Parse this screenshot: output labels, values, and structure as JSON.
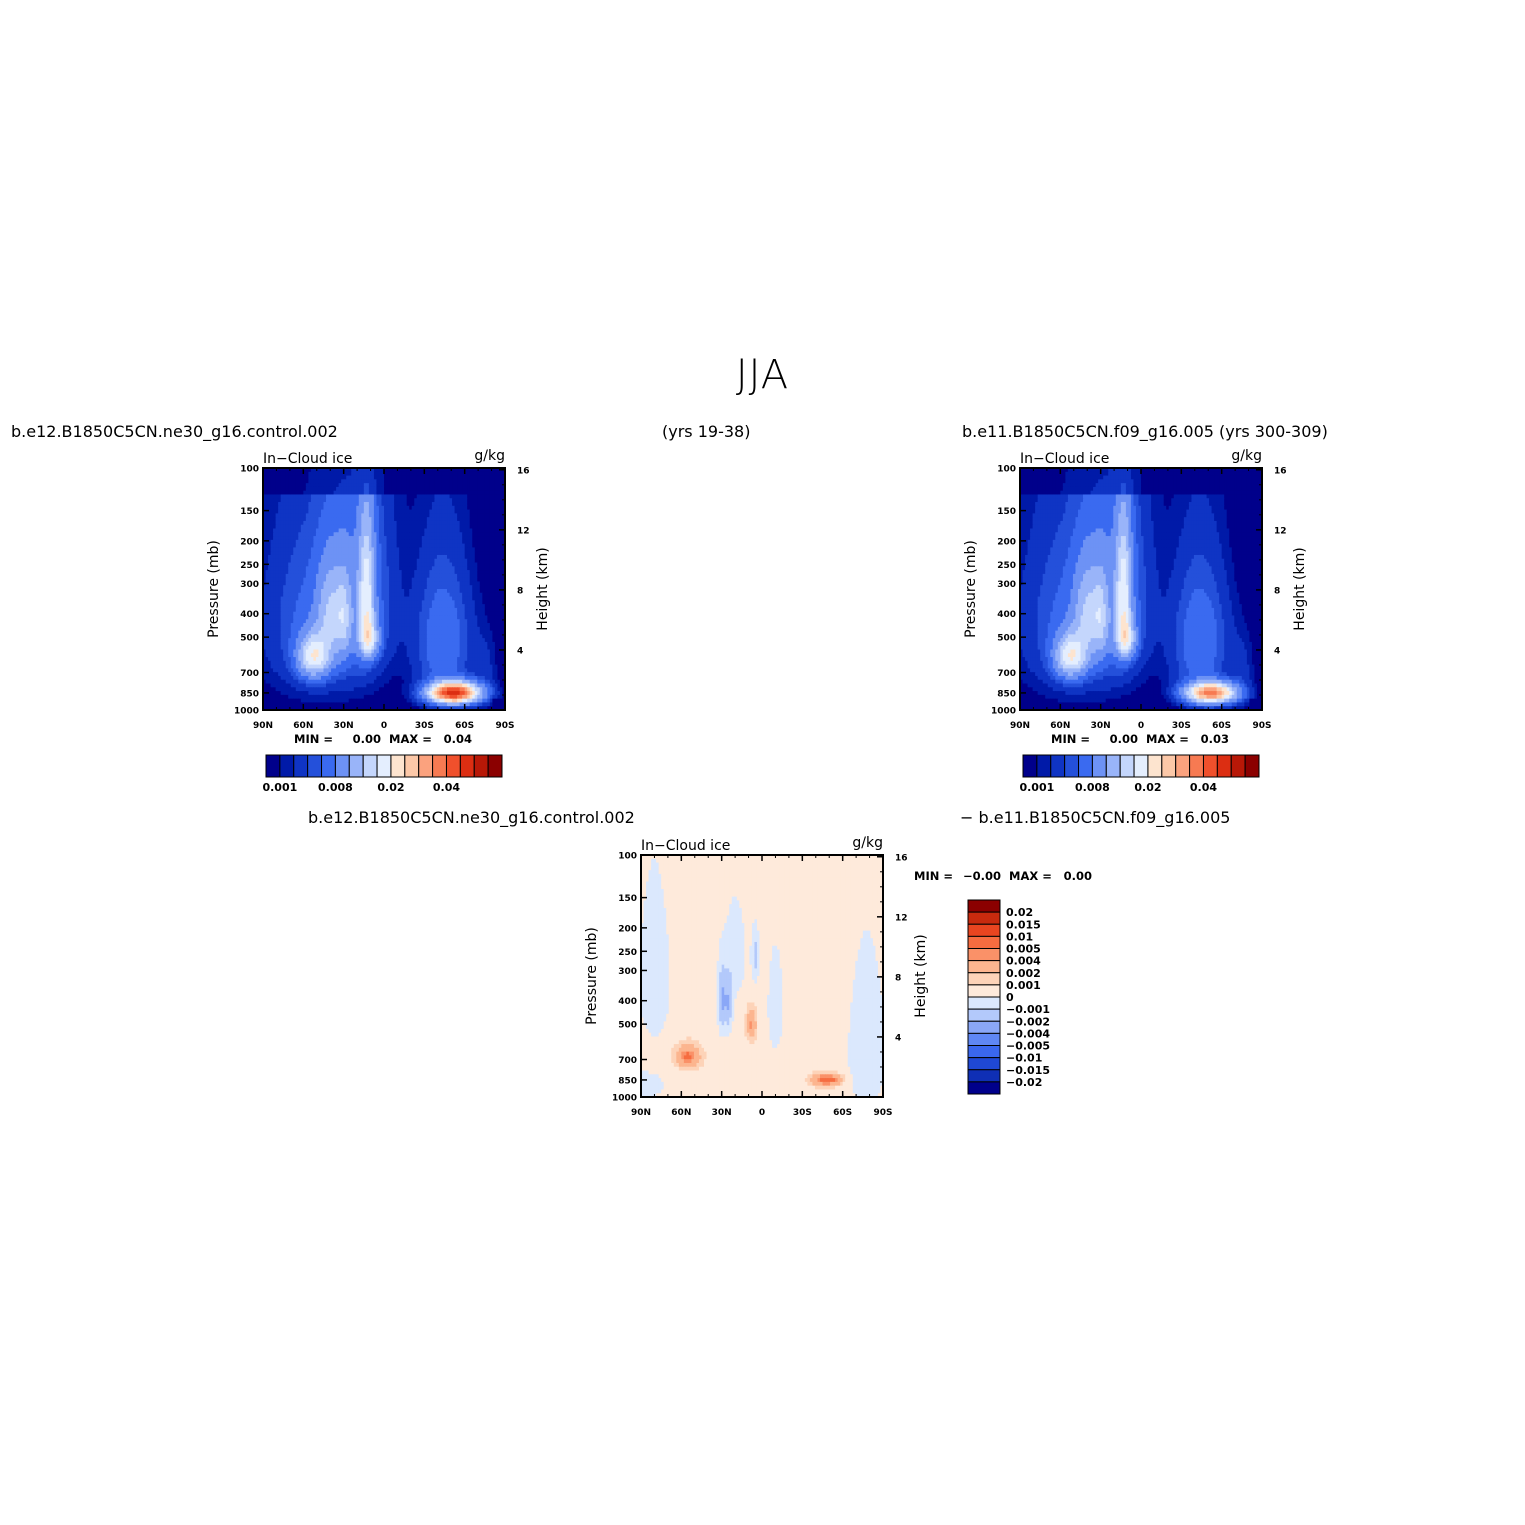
{
  "figure": {
    "season": "JJA",
    "left_case": "b.e12.B1850C5CN.ne30_g16.control.002",
    "years_left": "(yrs 19-38)",
    "right_case": "b.e11.B1850C5CN.f09_g16.005 (yrs 300-309)",
    "diff_left_label": "b.e12.B1850C5CN.ne30_g16.control.002",
    "diff_right_label": "− b.e11.B1850C5CN.f09_g16.005"
  },
  "colors": {
    "blue_scale": [
      "#00008b",
      "#001aa8",
      "#0f34c4",
      "#2450da",
      "#3a6af0",
      "#6d92f5",
      "#99b4f9",
      "#c4d6fc",
      "#e4eefe"
    ],
    "red_scale": [
      "#fde4cf",
      "#fcc8a8",
      "#fba27e",
      "#f77a52",
      "#f0502c",
      "#dc2e12",
      "#b81807",
      "#8b0000"
    ],
    "diff_neg": [
      "#00008b",
      "#0f2fb5",
      "#1f48d4",
      "#3a67ee",
      "#5f87f4",
      "#8aa7f7",
      "#b3c9fb",
      "#dbe8fd"
    ],
    "diff_pos": [
      "#feeadb",
      "#fdd3b8",
      "#fcb58f",
      "#fa9168",
      "#f66c40",
      "#e94520",
      "#c82a0e",
      "#8b0000"
    ]
  },
  "chart_data": [
    {
      "type": "heatmap",
      "name": "left",
      "title": "In−Cloud ice",
      "units": "g/kg",
      "ylabel": "Pressure (mb)",
      "y2label": "Height (km)",
      "x_ticks": [
        "90N",
        "60N",
        "30N",
        "0",
        "30S",
        "60S",
        "90S"
      ],
      "y_ticks": [
        100,
        150,
        200,
        250,
        300,
        400,
        500,
        700,
        850,
        1000
      ],
      "y2_ticks": [
        4,
        8,
        12,
        16
      ],
      "stats": {
        "min_label": "MIN =",
        "min": "0.00",
        "max_label": "MAX =",
        "max": "0.04"
      },
      "colorbar_labels": [
        "0.001",
        "0.008",
        "0.02",
        "0.04"
      ],
      "features": [
        {
          "lat": 55,
          "p": 580,
          "peak": 0.022
        },
        {
          "lat": 14,
          "p": 510,
          "peak": 0.02
        },
        {
          "lat": -55,
          "p": 850,
          "peak": 0.04
        }
      ]
    },
    {
      "type": "heatmap",
      "name": "right",
      "title": "In−Cloud ice",
      "units": "g/kg",
      "ylabel": "Pressure (mb)",
      "y2label": "Height (km)",
      "x_ticks": [
        "90N",
        "60N",
        "30N",
        "0",
        "30S",
        "60S",
        "90S"
      ],
      "y_ticks": [
        100,
        150,
        200,
        250,
        300,
        400,
        500,
        700,
        850,
        1000
      ],
      "y2_ticks": [
        4,
        8,
        12,
        16
      ],
      "stats": {
        "min_label": "MIN =",
        "min": "0.00",
        "max_label": "MAX =",
        "max": "0.03"
      },
      "colorbar_labels": [
        "0.001",
        "0.008",
        "0.02",
        "0.04"
      ],
      "features": [
        {
          "lat": 55,
          "p": 580,
          "peak": 0.022
        },
        {
          "lat": 14,
          "p": 510,
          "peak": 0.02
        },
        {
          "lat": -55,
          "p": 850,
          "peak": 0.03
        }
      ]
    },
    {
      "type": "heatmap",
      "name": "difference",
      "title": "In−Cloud ice",
      "units": "g/kg",
      "ylabel": "Pressure (mb)",
      "y2label": "Height (km)",
      "x_ticks": [
        "90N",
        "60N",
        "30N",
        "0",
        "30S",
        "60S",
        "90S"
      ],
      "y_ticks": [
        100,
        150,
        200,
        250,
        300,
        400,
        500,
        700,
        850,
        1000
      ],
      "y2_ticks": [
        4,
        8,
        12,
        16
      ],
      "stats": {
        "min_label": "MIN =",
        "min": "−0.00",
        "max_label": "MAX =",
        "max": "0.00"
      },
      "colorbar_labels": [
        "0.02",
        "0.015",
        "0.01",
        "0.005",
        "0.004",
        "0.002",
        "0.001",
        "0",
        "−0.001",
        "−0.002",
        "−0.004",
        "−0.005",
        "−0.01",
        "−0.015",
        "−0.02"
      ]
    }
  ]
}
